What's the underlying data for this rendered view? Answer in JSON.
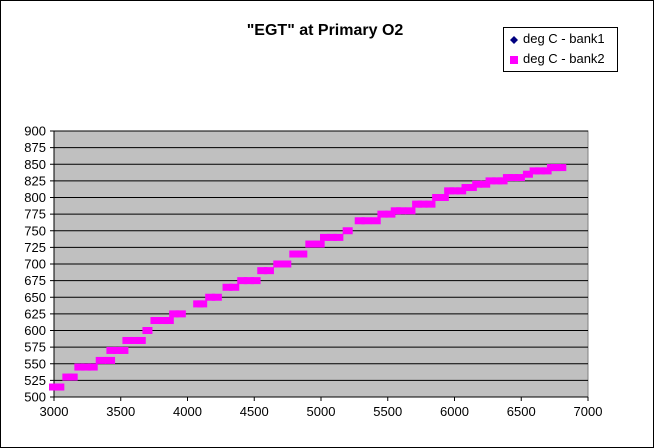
{
  "chart_data": {
    "type": "scatter",
    "title": "\"EGT\" at Primary O2",
    "xlabel": "",
    "ylabel": "",
    "xlim": [
      3000,
      7000
    ],
    "ylim": [
      500,
      900
    ],
    "x_ticks": [
      "3000",
      "3500",
      "4000",
      "4500",
      "5000",
      "5500",
      "6000",
      "6500",
      "7000"
    ],
    "y_ticks": [
      "500",
      "525",
      "550",
      "575",
      "600",
      "625",
      "650",
      "675",
      "700",
      "725",
      "750",
      "775",
      "800",
      "825",
      "850",
      "875",
      "900"
    ],
    "grid": "horizontal",
    "plot_background": "#c0c0c0",
    "legend_position": "top-right",
    "series": [
      {
        "name": "deg C - bank1",
        "marker": "diamond",
        "color": "#000080",
        "x": [],
        "y": []
      },
      {
        "name": "deg C - bank2",
        "marker": "square",
        "color": "#ff00ff",
        "x": [
          3000,
          3040,
          3100,
          3140,
          3190,
          3240,
          3290,
          3350,
          3420,
          3430,
          3480,
          3520,
          3550,
          3610,
          3650,
          3700,
          3760,
          3820,
          3860,
          3900,
          3950,
          4080,
          4110,
          4170,
          4220,
          4300,
          4350,
          4410,
          4460,
          4510,
          4560,
          4610,
          4680,
          4740,
          4800,
          4860,
          4920,
          4990,
          5030,
          5080,
          5130,
          5200,
          5290,
          5340,
          5410,
          5460,
          5520,
          5560,
          5600,
          5670,
          5720,
          5760,
          5820,
          5870,
          5920,
          5960,
          6000,
          6050,
          6090,
          6130,
          6170,
          6230,
          6270,
          6320,
          6360,
          6400,
          6440,
          6490,
          6550,
          6600,
          6640,
          6690,
          6730,
          6760,
          6800
        ],
        "y": [
          515,
          515,
          530,
          530,
          545,
          545,
          545,
          555,
          555,
          570,
          570,
          570,
          585,
          585,
          585,
          600,
          615,
          615,
          615,
          625,
          625,
          640,
          640,
          650,
          650,
          665,
          665,
          675,
          675,
          675,
          690,
          690,
          700,
          700,
          715,
          715,
          730,
          730,
          740,
          740,
          740,
          750,
          765,
          765,
          765,
          775,
          775,
          780,
          780,
          780,
          790,
          790,
          790,
          800,
          800,
          810,
          810,
          810,
          815,
          815,
          820,
          820,
          825,
          825,
          825,
          830,
          830,
          830,
          835,
          840,
          840,
          840,
          845,
          845,
          845
        ]
      }
    ]
  }
}
